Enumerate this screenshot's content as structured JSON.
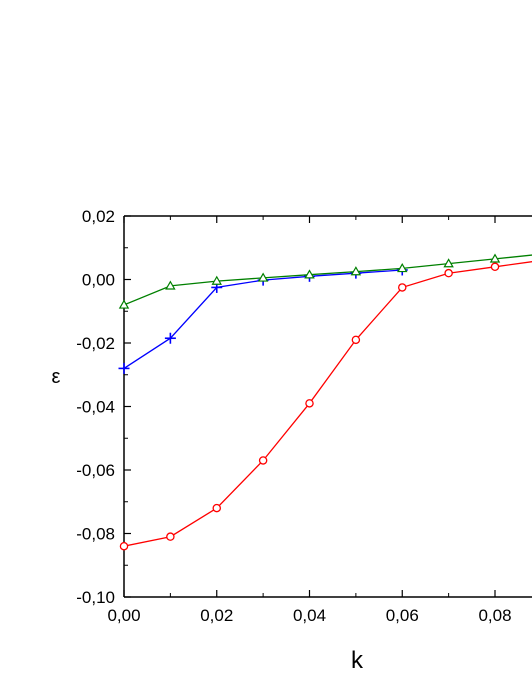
{
  "chart_data": {
    "type": "line",
    "title": "",
    "xlabel": "k",
    "ylabel": "ε",
    "xlim": [
      0.0,
      0.09
    ],
    "ylim": [
      -0.1,
      0.02
    ],
    "x_ticks": [
      0.0,
      0.02,
      0.04,
      0.06,
      0.08
    ],
    "x_tick_labels": [
      "0,00",
      "0,02",
      "0,04",
      "0,06",
      "0,08"
    ],
    "y_ticks": [
      0.02,
      0.0,
      -0.02,
      -0.04,
      -0.06,
      -0.08,
      -0.1
    ],
    "y_tick_labels": [
      "0,02",
      "0,00",
      "-0,02",
      "-0,04",
      "-0,06",
      "-0,08",
      "-0,10"
    ],
    "grid": false,
    "legend": "none",
    "series": [
      {
        "color": "#ff0000",
        "marker": "circle",
        "x": [
          0.0,
          0.01,
          0.02,
          0.03,
          0.04,
          0.05,
          0.06,
          0.07,
          0.08,
          0.09
        ],
        "y": [
          -0.084,
          -0.081,
          -0.072,
          -0.057,
          -0.039,
          -0.019,
          -0.0025,
          0.002,
          0.004,
          0.006
        ]
      },
      {
        "color": "#0000ff",
        "marker": "plus",
        "x": [
          0.0,
          0.01,
          0.02,
          0.03,
          0.04,
          0.05,
          0.06
        ],
        "y": [
          -0.028,
          -0.0185,
          -0.0025,
          -0.0002,
          0.001,
          0.002,
          0.003
        ]
      },
      {
        "color": "#008000",
        "marker": "triangle",
        "x": [
          0.0,
          0.01,
          0.02,
          0.03,
          0.04,
          0.05,
          0.06,
          0.07,
          0.08,
          0.09
        ],
        "y": [
          -0.008,
          -0.002,
          -0.0005,
          0.0005,
          0.0015,
          0.0025,
          0.0035,
          0.005,
          0.0065,
          0.008
        ]
      }
    ]
  }
}
